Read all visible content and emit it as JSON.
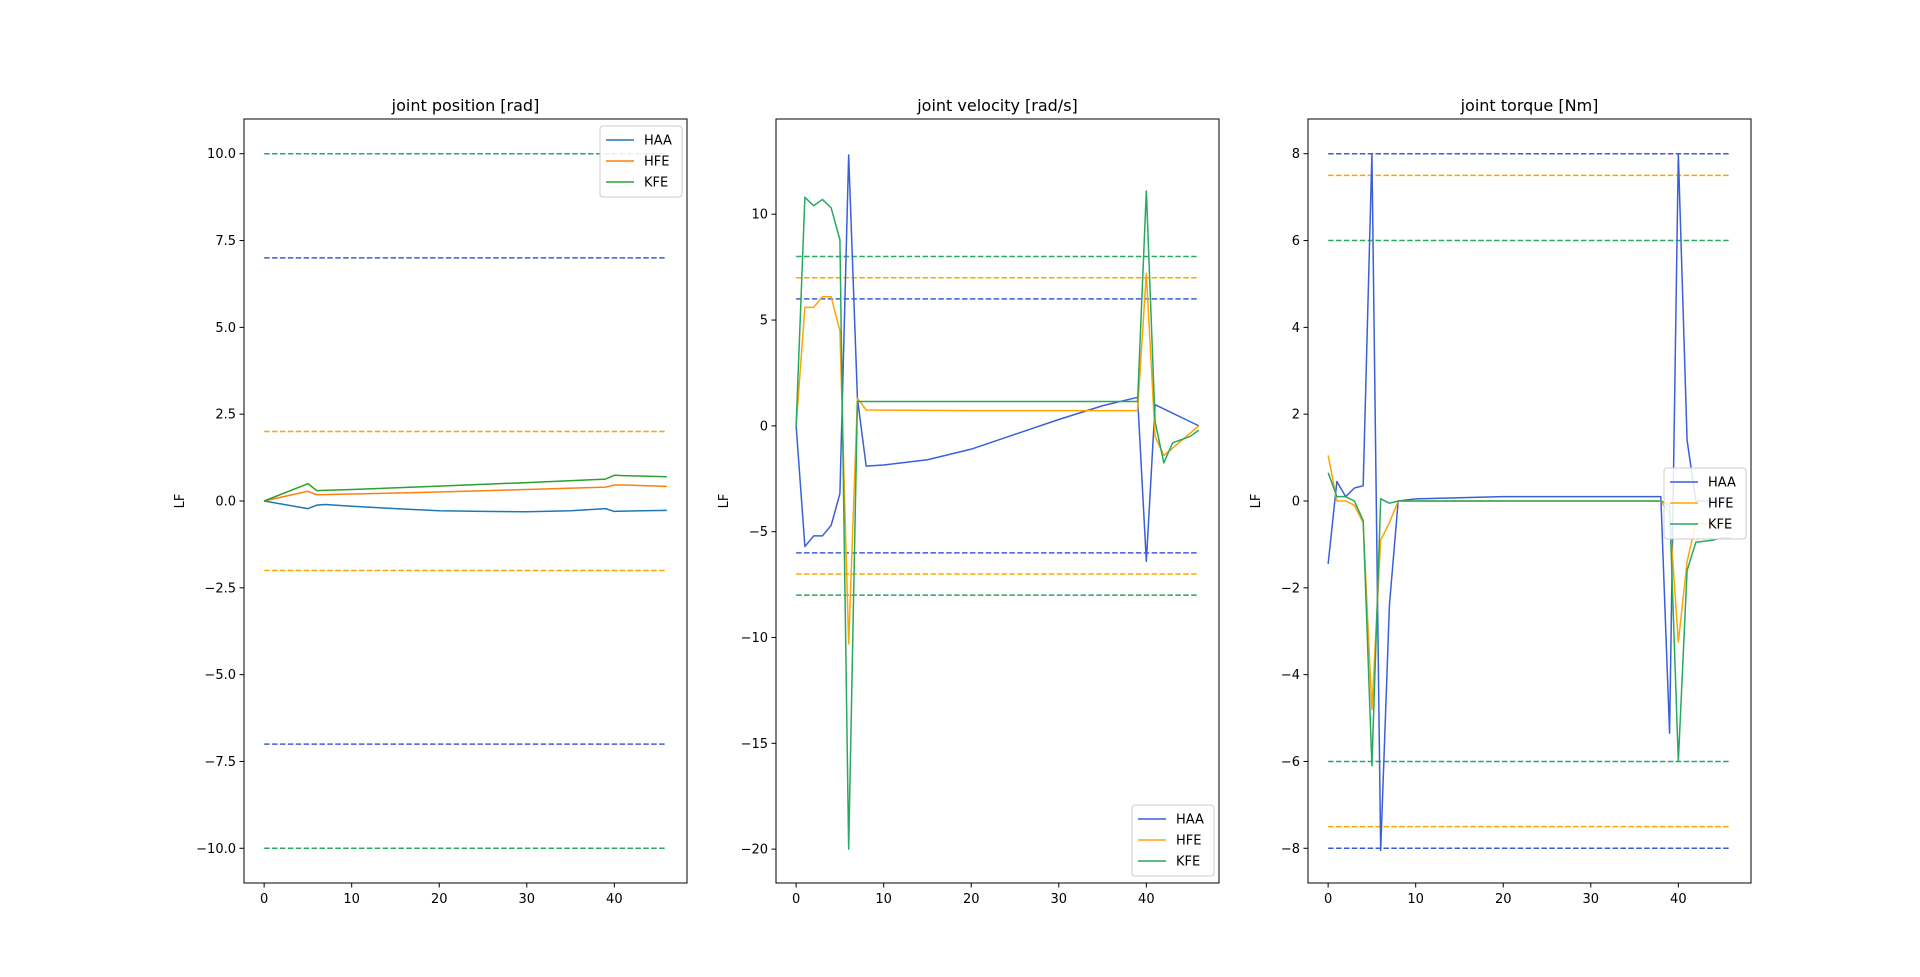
{
  "chart_data": [
    {
      "type": "line",
      "title": "joint position [rad]",
      "xlabel": "",
      "ylabel": "LF",
      "xlim": [
        -2.3,
        48.3
      ],
      "ylim": [
        -11.0,
        11.0
      ],
      "xticks": [
        0,
        10,
        20,
        30,
        40
      ],
      "yticks": [
        -10.0,
        -7.5,
        -5.0,
        -2.5,
        0.0,
        2.5,
        5.0,
        7.5,
        10.0
      ],
      "ytick_labels": [
        "−10.0",
        "−7.5",
        "−5.0",
        "−2.5",
        "0.0",
        "2.5",
        "5.0",
        "7.5",
        "10.0"
      ],
      "legend_position": "upper right",
      "series": [
        {
          "name": "HAA",
          "color": "#1f77b4",
          "x": [
            0,
            5,
            6,
            7,
            10,
            15,
            20,
            25,
            30,
            35,
            39,
            40,
            41,
            46
          ],
          "y": [
            0.0,
            -0.22,
            -0.12,
            -0.1,
            -0.15,
            -0.22,
            -0.28,
            -0.3,
            -0.31,
            -0.28,
            -0.22,
            -0.3,
            -0.29,
            -0.27
          ]
        },
        {
          "name": "HFE",
          "color": "#ff7f0e",
          "x": [
            0,
            5,
            6,
            10,
            20,
            30,
            39,
            40,
            41,
            46
          ],
          "y": [
            0.0,
            0.28,
            0.18,
            0.2,
            0.26,
            0.33,
            0.4,
            0.46,
            0.46,
            0.42
          ]
        },
        {
          "name": "KFE",
          "color": "#2ca02c",
          "x": [
            0,
            5,
            6,
            10,
            20,
            30,
            39,
            40,
            41,
            46
          ],
          "y": [
            0.0,
            0.5,
            0.3,
            0.33,
            0.43,
            0.53,
            0.63,
            0.74,
            0.73,
            0.7
          ]
        }
      ],
      "limits": [
        {
          "color": "#3a5fd9",
          "x": [
            0,
            46
          ],
          "values": [
            7.0,
            -7.0
          ]
        },
        {
          "color": "#ffa500",
          "x": [
            0,
            46
          ],
          "values": [
            2.0,
            -2.0
          ]
        },
        {
          "color": "#28a860",
          "x": [
            0,
            46
          ],
          "values": [
            10.0,
            -10.0
          ]
        }
      ]
    },
    {
      "type": "line",
      "title": "joint velocity [rad/s]",
      "xlabel": "",
      "ylabel": "LF",
      "xlim": [
        -2.3,
        48.3
      ],
      "ylim": [
        -21.6,
        14.5
      ],
      "xticks": [
        0,
        10,
        20,
        30,
        40
      ],
      "yticks": [
        -20,
        -15,
        -10,
        -5,
        0,
        5,
        10
      ],
      "ytick_labels": [
        "−20",
        "−15",
        "−10",
        "−5",
        "0",
        "5",
        "10"
      ],
      "legend_position": "lower right",
      "series": [
        {
          "name": "HAA",
          "color": "#3a5fd9",
          "x": [
            0,
            1,
            2,
            3,
            4,
            5,
            6,
            7,
            8,
            10,
            15,
            20,
            25,
            30,
            35,
            39,
            40,
            41,
            46
          ],
          "y": [
            0.0,
            -5.7,
            -5.2,
            -5.2,
            -4.7,
            -3.2,
            12.8,
            1.3,
            -1.9,
            -1.85,
            -1.6,
            -1.1,
            -0.4,
            0.3,
            0.95,
            1.35,
            -6.4,
            1.0,
            0.0
          ]
        },
        {
          "name": "HFE",
          "color": "#ffa500",
          "x": [
            0,
            1,
            2,
            3,
            4,
            5,
            6,
            7,
            8,
            20,
            39,
            40,
            41,
            42,
            46
          ],
          "y": [
            0.0,
            5.6,
            5.6,
            6.1,
            6.1,
            4.5,
            -10.3,
            1.3,
            0.75,
            0.72,
            0.72,
            7.2,
            -0.5,
            -1.4,
            0.0
          ]
        },
        {
          "name": "KFE",
          "color": "#28a860",
          "x": [
            0,
            1,
            2,
            3,
            4,
            5,
            6,
            7,
            8,
            20,
            39,
            40,
            41,
            42,
            43,
            45,
            46
          ],
          "y": [
            0.0,
            10.8,
            10.4,
            10.7,
            10.3,
            8.8,
            -20.0,
            1.15,
            1.15,
            1.15,
            1.15,
            11.1,
            0.2,
            -1.75,
            -0.8,
            -0.5,
            -0.2
          ]
        }
      ],
      "limits": [
        {
          "color": "#3a5fd9",
          "x": [
            0,
            46
          ],
          "values": [
            6.0,
            -6.0
          ]
        },
        {
          "color": "#ffa500",
          "x": [
            0,
            46
          ],
          "values": [
            7.0,
            -7.0
          ]
        },
        {
          "color": "#28a860",
          "x": [
            0,
            46
          ],
          "values": [
            8.0,
            -8.0
          ]
        }
      ]
    },
    {
      "type": "line",
      "title": "joint torque [Nm]",
      "xlabel": "",
      "ylabel": "LF",
      "xlim": [
        -2.3,
        48.3
      ],
      "ylim": [
        -8.8,
        8.8
      ],
      "xticks": [
        0,
        10,
        20,
        30,
        40
      ],
      "yticks": [
        -8,
        -6,
        -4,
        -2,
        0,
        2,
        4,
        6,
        8
      ],
      "ytick_labels": [
        "−8",
        "−6",
        "−4",
        "−2",
        "0",
        "2",
        "4",
        "6",
        "8"
      ],
      "legend_position": "center right",
      "series": [
        {
          "name": "HAA",
          "color": "#3a5fd9",
          "x": [
            0,
            1,
            2,
            3,
            4,
            5,
            6,
            7,
            8,
            10,
            20,
            30,
            38,
            39,
            40,
            41,
            42,
            46
          ],
          "y": [
            -1.45,
            0.45,
            0.1,
            0.3,
            0.35,
            8.0,
            -8.05,
            -2.4,
            0.0,
            0.05,
            0.1,
            0.1,
            0.1,
            -5.35,
            8.0,
            1.4,
            0.0,
            0.0
          ]
        },
        {
          "name": "HFE",
          "color": "#ffa500",
          "x": [
            0,
            1,
            2,
            3,
            4,
            5,
            6,
            7,
            8,
            38,
            39,
            40,
            41,
            42,
            46
          ],
          "y": [
            1.05,
            0.0,
            0.0,
            -0.1,
            -0.5,
            -4.8,
            -0.9,
            -0.5,
            0.0,
            0.0,
            -0.3,
            -3.25,
            -1.4,
            -0.5,
            -0.6
          ]
        },
        {
          "name": "KFE",
          "color": "#28a860",
          "x": [
            0,
            1,
            2,
            3,
            4,
            5,
            6,
            7,
            8,
            38,
            39,
            40,
            41,
            42,
            44,
            45,
            46
          ],
          "y": [
            0.65,
            0.1,
            0.1,
            0.0,
            -0.45,
            -6.1,
            0.05,
            -0.05,
            0.0,
            0.0,
            -0.1,
            -6.0,
            -1.6,
            -0.95,
            -0.9,
            -0.85,
            -0.85
          ]
        }
      ],
      "limits": [
        {
          "color": "#3a5fd9",
          "x": [
            0,
            46
          ],
          "values": [
            8.0,
            -8.0
          ]
        },
        {
          "color": "#ffa500",
          "x": [
            0,
            46
          ],
          "values": [
            7.5,
            -7.5
          ]
        },
        {
          "color": "#28a860",
          "x": [
            0,
            46
          ],
          "values": [
            6.0,
            -6.0
          ]
        }
      ]
    }
  ]
}
